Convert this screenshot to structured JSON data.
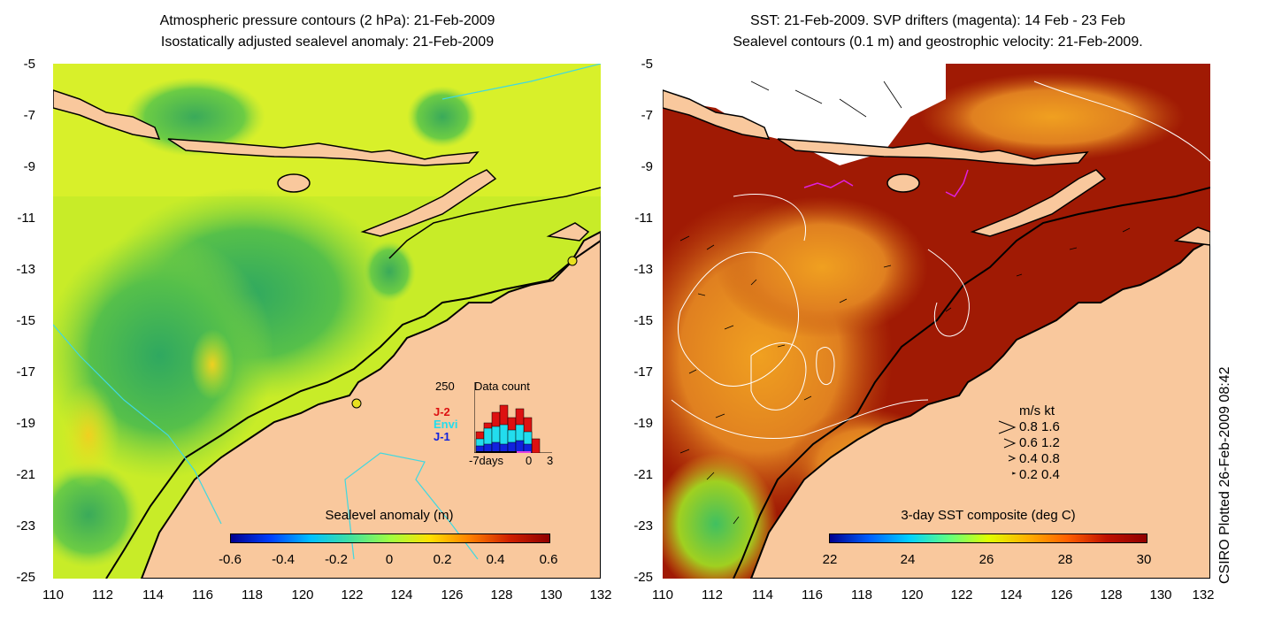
{
  "left": {
    "title1": "Atmospheric pressure contours (2 hPa): 21-Feb-2009",
    "title2": "Isostatically adjusted sealevel anomaly: 21-Feb-2009",
    "y_ticks": [
      "-5",
      "-7",
      "-9",
      "-11",
      "-13",
      "-15",
      "-17",
      "-19",
      "-21",
      "-23",
      "-25"
    ],
    "x_ticks": [
      "110",
      "112",
      "114",
      "116",
      "118",
      "120",
      "122",
      "124",
      "126",
      "128",
      "130",
      "132"
    ],
    "colorbar_title": "Sealevel anomaly (m)",
    "colorbar_labels": [
      "-0.6",
      "-0.4",
      "-0.2",
      "0",
      "0.2",
      "0.4",
      "0.6"
    ],
    "inset": {
      "max_label": "250",
      "title": "Data count",
      "series": [
        "J-2",
        "Envi",
        "J-1"
      ],
      "series_colors": [
        "#dd1111",
        "#22ddee",
        "#1122dd"
      ],
      "x_left": "-7days",
      "x_mid": "0",
      "x_right": "3"
    }
  },
  "right": {
    "title1": "SST: 21-Feb-2009. SVP drifters (magenta): 14 Feb - 23 Feb",
    "title2": "Sealevel contours (0.1 m) and geostrophic velocity: 21-Feb-2009.",
    "y_ticks": [
      "-5",
      "-7",
      "-9",
      "-11",
      "-13",
      "-15",
      "-17",
      "-19",
      "-21",
      "-23",
      "-25"
    ],
    "x_ticks": [
      "110",
      "112",
      "114",
      "116",
      "118",
      "120",
      "122",
      "124",
      "126",
      "128",
      "130",
      "132"
    ],
    "colorbar_title": "3-day SST composite (deg C)",
    "colorbar_labels": [
      "22",
      "24",
      "26",
      "28",
      "30"
    ],
    "velocity_legend": {
      "header": "m/s  kt",
      "rows": [
        "0.8  1.6",
        "0.6  1.2",
        "0.4  0.8",
        "0.2  0.4"
      ]
    }
  },
  "side_label": "CSIRO Plotted 26-Feb-2009 08:42",
  "colors": {
    "land": "#f9c89d",
    "sla_colormap": [
      "#000090",
      "#0040ff",
      "#00c0ff",
      "#40e0a0",
      "#a0ff40",
      "#ffe000",
      "#ff8000",
      "#d02000",
      "#900000"
    ],
    "sst_colormap": [
      "#000090",
      "#0060ff",
      "#00d0ff",
      "#60ff80",
      "#e0ff00",
      "#ffb000",
      "#ff6000",
      "#c01000",
      "#900000"
    ]
  }
}
